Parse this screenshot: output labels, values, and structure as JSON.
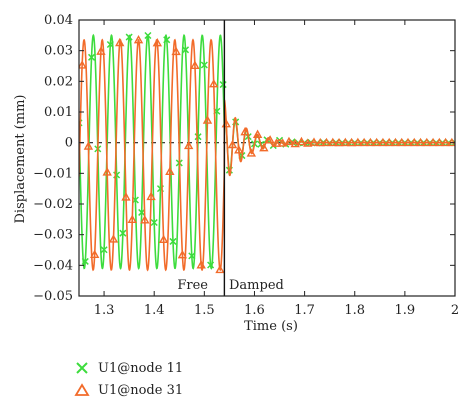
{
  "chart_data": {
    "type": "line",
    "xlabel": "Time (s)",
    "ylabel": "Displacement (mm)",
    "xlim": [
      1.25,
      2.0
    ],
    "ylim": [
      -0.05,
      0.04
    ],
    "x_ticks": [
      1.3,
      1.4,
      1.5,
      1.6,
      1.7,
      1.8,
      1.9,
      2
    ],
    "y_ticks": [
      0.04,
      0.03,
      0.02,
      0.01,
      0,
      -0.01,
      -0.02,
      -0.03,
      -0.04,
      -0.05
    ],
    "x_tick_labels": [
      "1.3",
      "1.4",
      "1.5",
      "1.6",
      "1.7",
      "1.8",
      "1.9",
      "2"
    ],
    "y_tick_labels": [
      "0.04",
      "0.03",
      "0.02",
      "0.01",
      "0",
      "−0.01",
      "−0.02",
      "−0.03",
      "−0.04",
      "−0.05"
    ],
    "zero_line": "dashed",
    "switch_time": 1.54,
    "annotations": {
      "left": "Free",
      "right": "Damped"
    },
    "legend_position": "below-left",
    "series": [
      {
        "name": "U1@node 11",
        "color": "#3ddc3d",
        "marker": "x",
        "free_phase": {
          "amplitude": 0.038,
          "offset": -0.003,
          "period": 0.0362,
          "phase_at_start": 0.21
        },
        "damped_phase": {
          "initial_amplitude": 0.012,
          "decay_time": 0.04,
          "period": 0.022,
          "settle_value": 0
        }
      },
      {
        "name": "U1@node 31",
        "color": "#f26b2a",
        "marker": "triangle",
        "free_phase": {
          "amplitude": 0.0375,
          "offset": -0.004,
          "period": 0.0362,
          "phase_at_start": 0.72
        },
        "damped_phase": {
          "initial_amplitude": 0.014,
          "decay_time": 0.04,
          "period": 0.022,
          "settle_value": 0
        }
      }
    ]
  }
}
